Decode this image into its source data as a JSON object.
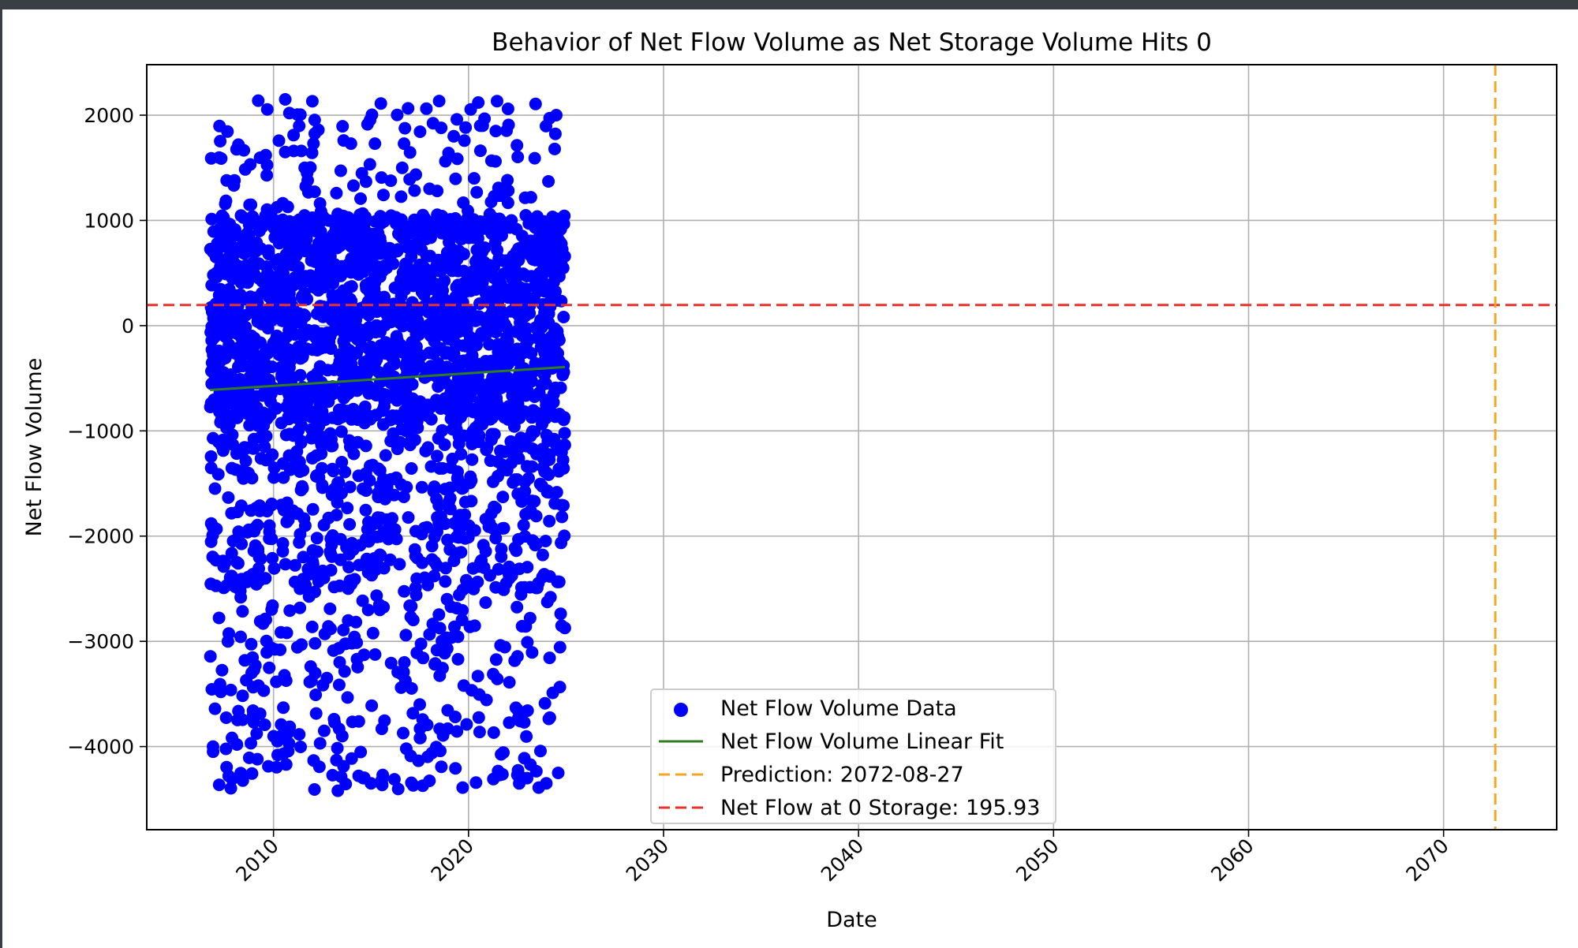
{
  "chart_data": {
    "type": "scatter",
    "title": "Behavior of Net Flow Volume as Net Storage Volume Hits 0",
    "xlabel": "Date",
    "ylabel": "Net Flow Volume",
    "xlim": [
      2003.5,
      2075.8
    ],
    "ylim": [
      -4790,
      2480
    ],
    "x_ticks": [
      2010,
      2020,
      2030,
      2040,
      2050,
      2060,
      2070
    ],
    "x_tick_labels": [
      "2010",
      "2020",
      "2030",
      "2040",
      "2050",
      "2060",
      "2070"
    ],
    "y_ticks": [
      2000,
      1000,
      0,
      -1000,
      -2000,
      -3000,
      -4000
    ],
    "y_tick_labels": [
      "2000",
      "1000",
      "0",
      "−1000",
      "−2000",
      "−3000",
      "−4000"
    ],
    "grid": true,
    "legend_position": "lower center",
    "colors": {
      "scatter": "#0000ff",
      "fit": "#2e7d1e",
      "prediction": "#f5a623",
      "zero_storage": "#e8332a"
    },
    "series": [
      {
        "name": "Net Flow Volume Data",
        "type": "scatter",
        "x_range": [
          2006.75,
          2024.95
        ],
        "y_range": [
          -4420,
          2150
        ],
        "x": [
          2006.9,
          2006.9,
          2007.0,
          2007.3,
          2007.6,
          2008.0,
          2008.2,
          2008.6,
          2009.6,
          2010.2,
          2010.6,
          2010.6,
          2010.8,
          2011.6,
          2012.3,
          2012.6,
          2013.3,
          2013.6,
          2014.1,
          2014.6,
          2015.2,
          2015.6,
          2016.6,
          2017.5,
          2018.0,
          2018.6,
          2018.9,
          2019.4,
          2019.7,
          2020.5,
          2020.6,
          2020.8,
          2021.4,
          2021.6,
          2022.2,
          2022.6,
          2023.2,
          2023.6,
          2024.5,
          2024.6
        ],
        "y": [
          -4000,
          700,
          -3640,
          -3480,
          1380,
          1380,
          1720,
          -3370,
          1620,
          -3950,
          2150,
          1650,
          -3970,
          1500,
          1860,
          -3850,
          -4420,
          1760,
          1330,
          -4300,
          1730,
          -4270,
          1500,
          -3600,
          1300,
          1880,
          -2600,
          1960,
          -4390,
          2120,
          1900,
          -2300,
          1850,
          -4270,
          1000,
          -4350,
          1220,
          -4390,
          2000,
          -4250
        ]
      },
      {
        "name": "Net Flow Volume Linear Fit",
        "type": "line",
        "x": [
          2006.75,
          2024.95
        ],
        "y": [
          -612,
          -393
        ]
      },
      {
        "name": "Prediction: 2072-08-27",
        "type": "vline",
        "x": 2072.65
      },
      {
        "name": "Net Flow at 0 Storage: 195.93",
        "type": "hline",
        "y": 195.93
      }
    ]
  }
}
